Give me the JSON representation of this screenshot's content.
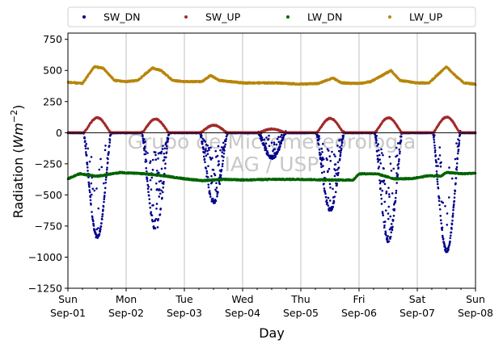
{
  "chart_data": {
    "type": "scatter",
    "xlabel": "Day",
    "ylabel_prefix": "Radiation (",
    "ylabel_unit_main": "Wm",
    "ylabel_unit_exp": "−2",
    "ylabel_suffix": ")",
    "ylim": [
      -1250,
      800
    ],
    "yticks": [
      750,
      500,
      250,
      0,
      -250,
      -500,
      -750,
      -1000,
      -1250
    ],
    "ytick_labels": [
      "750",
      "500",
      "250",
      "0",
      "−250",
      "−500",
      "−750",
      "−1000",
      "−1250"
    ],
    "xlim_days": [
      0,
      7
    ],
    "xticks": [
      {
        "day": "Sun",
        "date": "Sep-01"
      },
      {
        "day": "Mon",
        "date": "Sep-02"
      },
      {
        "day": "Tue",
        "date": "Sep-03"
      },
      {
        "day": "Wed",
        "date": "Sep-04"
      },
      {
        "day": "Thu",
        "date": "Sep-05"
      },
      {
        "day": "Fri",
        "date": "Sep-06"
      },
      {
        "day": "Sat",
        "date": "Sep-07"
      },
      {
        "day": "Sun",
        "date": "Sep-08"
      }
    ],
    "grid_x": true,
    "legend_placement": "top",
    "watermark": [
      "Grupo de Micrometeorologia",
      "IAG / USP"
    ],
    "series": [
      {
        "name": "SW_DN",
        "color": "#00008b",
        "daily_peak": [
          -840,
          -780,
          -560,
          -200,
          -620,
          -870,
          -950
        ]
      },
      {
        "name": "SW_UP",
        "color": "#a52a2a",
        "daily_peak": [
          120,
          110,
          60,
          30,
          115,
          120,
          125
        ]
      },
      {
        "name": "LW_DN",
        "color": "#006400",
        "profile": [
          [
            0,
            -370
          ],
          [
            0.2,
            -330
          ],
          [
            0.5,
            -350
          ],
          [
            0.9,
            -320
          ],
          [
            1.3,
            -330
          ],
          [
            1.7,
            -350
          ],
          [
            2.0,
            -370
          ],
          [
            2.3,
            -385
          ],
          [
            2.7,
            -375
          ],
          [
            3.0,
            -380
          ],
          [
            3.5,
            -375
          ],
          [
            4.0,
            -375
          ],
          [
            4.5,
            -380
          ],
          [
            4.9,
            -380
          ],
          [
            5.0,
            -330
          ],
          [
            5.3,
            -330
          ],
          [
            5.6,
            -370
          ],
          [
            5.9,
            -370
          ],
          [
            6.2,
            -345
          ],
          [
            6.4,
            -350
          ],
          [
            6.5,
            -320
          ],
          [
            6.8,
            -330
          ],
          [
            7.0,
            -325
          ]
        ]
      },
      {
        "name": "LW_UP",
        "color": "#b8860b",
        "profile": [
          [
            0,
            405
          ],
          [
            0.25,
            395
          ],
          [
            0.45,
            530
          ],
          [
            0.6,
            520
          ],
          [
            0.8,
            420
          ],
          [
            1.0,
            410
          ],
          [
            1.2,
            420
          ],
          [
            1.45,
            520
          ],
          [
            1.6,
            500
          ],
          [
            1.8,
            420
          ],
          [
            2.0,
            410
          ],
          [
            2.3,
            410
          ],
          [
            2.45,
            460
          ],
          [
            2.6,
            420
          ],
          [
            3.0,
            400
          ],
          [
            3.4,
            400
          ],
          [
            3.6,
            400
          ],
          [
            4.0,
            390
          ],
          [
            4.3,
            395
          ],
          [
            4.55,
            440
          ],
          [
            4.7,
            400
          ],
          [
            5.0,
            395
          ],
          [
            5.2,
            410
          ],
          [
            5.55,
            500
          ],
          [
            5.7,
            420
          ],
          [
            6.0,
            400
          ],
          [
            6.2,
            400
          ],
          [
            6.5,
            530
          ],
          [
            6.65,
            460
          ],
          [
            6.8,
            400
          ],
          [
            7.0,
            390
          ]
        ]
      }
    ]
  }
}
